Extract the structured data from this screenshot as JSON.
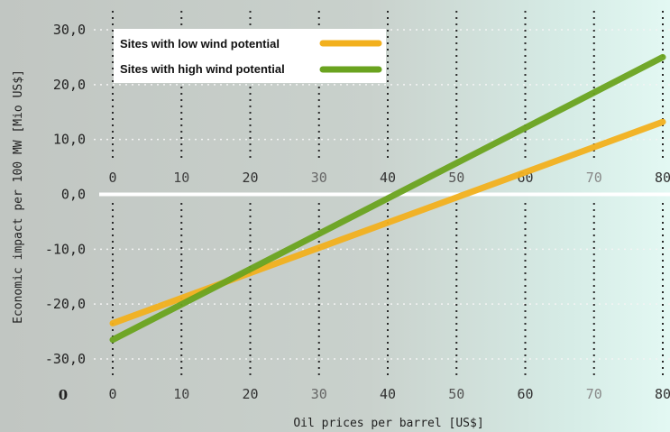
{
  "chart_data": {
    "type": "line",
    "xlabel": "Oil prices per barrel [US$]",
    "ylabel": "Economic impact per 100 MW [Mio US$]",
    "x": [
      0,
      80
    ],
    "xticks": [
      "0",
      "10",
      "20",
      "30",
      "40",
      "50",
      "60",
      "70",
      "80"
    ],
    "yticks": [
      "30,0",
      "20,0",
      "10,0",
      "0,0",
      "-10,0",
      "-20,0",
      "-30,0"
    ],
    "xlim": [
      0,
      80
    ],
    "ylim": [
      -30,
      30
    ],
    "grid": true,
    "legend_position": "top-left",
    "corner_label": "0",
    "series": [
      {
        "name": "Sites with low wind potential",
        "color": "#f2b01e",
        "values": [
          -23.5,
          13.2
        ]
      },
      {
        "name": "Sites with high wind potential",
        "color": "#6aa31f",
        "values": [
          -26.5,
          25.0
        ]
      }
    ]
  }
}
